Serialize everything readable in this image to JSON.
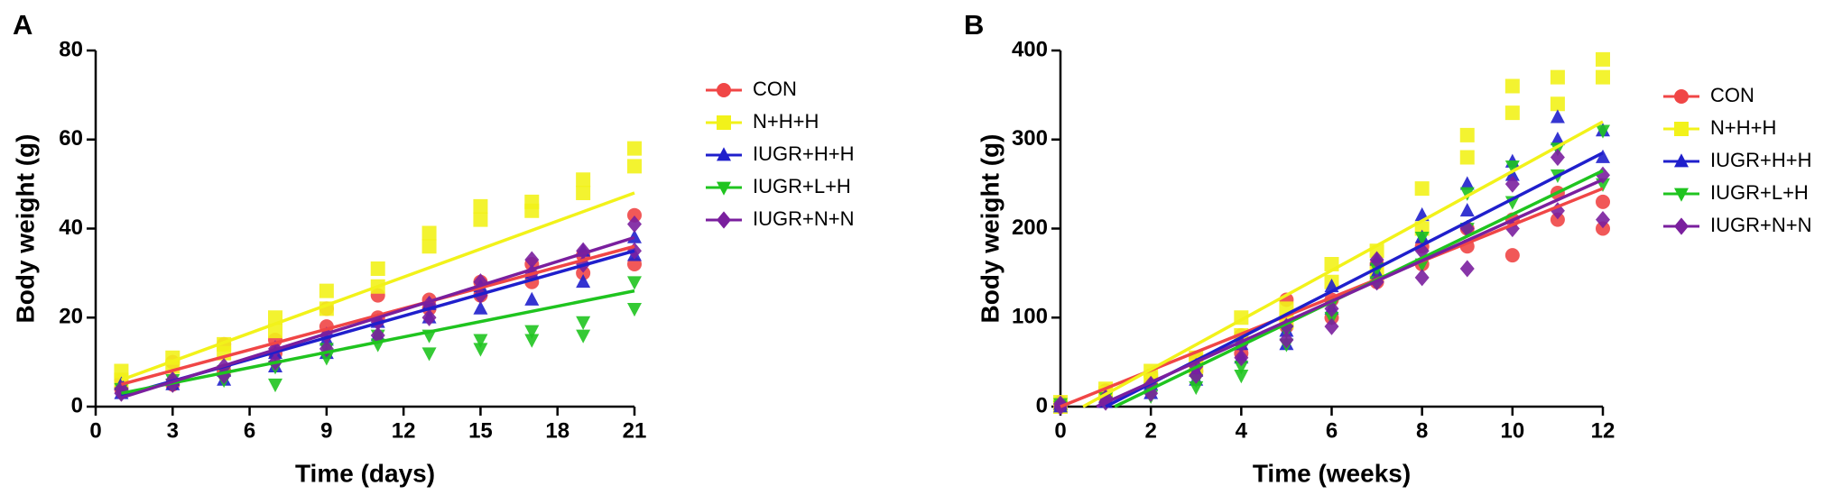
{
  "chart_data": [
    {
      "type": "scatter",
      "title": "A",
      "x_label": "Time (days)",
      "y_label": "Body weight (g)",
      "xlim": [
        0,
        21
      ],
      "xticks": [
        0,
        3,
        6,
        9,
        12,
        15,
        18,
        21
      ],
      "ylim": [
        0,
        80
      ],
      "yticks": [
        0,
        20,
        40,
        60,
        80
      ],
      "grid": false,
      "legend": "right",
      "x": [
        1,
        1,
        3,
        3,
        5,
        5,
        7,
        7,
        9,
        9,
        11,
        11,
        13,
        13,
        15,
        15,
        17,
        17,
        19,
        19,
        21,
        21
      ],
      "series": [
        {
          "name": "CON",
          "color": "#f04646",
          "marker": "circle",
          "values": [
            4,
            6,
            5,
            10,
            8,
            14,
            12,
            15,
            18,
            22,
            20,
            25,
            22,
            24,
            25,
            28,
            28,
            32,
            30,
            34,
            32,
            43
          ],
          "fit": {
            "x": [
              1,
              21
            ],
            "y": [
              5,
              36
            ]
          }
        },
        {
          "name": "N+H+H",
          "color": "#f2f21a",
          "marker": "square",
          "values": [
            6,
            8,
            9,
            11,
            12,
            14,
            17,
            20,
            22,
            26,
            27,
            31,
            36,
            39,
            42,
            45,
            44,
            46,
            48,
            51,
            54,
            58
          ],
          "fit": {
            "x": [
              1,
              21
            ],
            "y": [
              6,
              48
            ]
          }
        },
        {
          "name": "IUGR+H+H",
          "color": "#1f1fcc",
          "marker": "triangle",
          "values": [
            3,
            5,
            5,
            6,
            6,
            8,
            9,
            12,
            12,
            15,
            16,
            19,
            20,
            23,
            22,
            27,
            24,
            30,
            28,
            35,
            34,
            38
          ],
          "fit": {
            "x": [
              1,
              21
            ],
            "y": [
              2.5,
              35
            ]
          }
        },
        {
          "name": "IUGR+L+H",
          "color": "#1fc41f",
          "marker": "triangle-down",
          "values": [
            3,
            4,
            5,
            6,
            6,
            8,
            5,
            9,
            11,
            13,
            14,
            16,
            12,
            16,
            13,
            15,
            15,
            17,
            16,
            19,
            22,
            28
          ],
          "fit": {
            "x": [
              1,
              21
            ],
            "y": [
              3,
              26
            ]
          }
        },
        {
          "name": "IUGR+N+N",
          "color": "#7a1f9e",
          "marker": "diamond",
          "values": [
            3,
            4,
            5,
            6,
            7,
            9,
            10,
            13,
            13,
            16,
            16,
            19,
            20,
            23,
            25,
            28,
            30,
            33,
            32,
            35,
            35,
            41
          ],
          "fit": {
            "x": [
              1,
              21
            ],
            "y": [
              2,
              38
            ]
          }
        }
      ]
    },
    {
      "type": "scatter",
      "title": "B",
      "x_label": "Time (weeks)",
      "y_label": "Body weight (g)",
      "xlim": [
        0,
        12
      ],
      "xticks": [
        0,
        2,
        4,
        6,
        8,
        10,
        12
      ],
      "ylim": [
        0,
        400
      ],
      "yticks": [
        0,
        100,
        200,
        300,
        400
      ],
      "grid": false,
      "legend": "right",
      "x": [
        0,
        0,
        1,
        1,
        2,
        2,
        3,
        3,
        4,
        4,
        5,
        5,
        6,
        6,
        7,
        7,
        8,
        8,
        9,
        9,
        10,
        10,
        11,
        11,
        12,
        12
      ],
      "series": [
        {
          "name": "CON",
          "color": "#f04646",
          "marker": "circle",
          "values": [
            0,
            5,
            10,
            18,
            25,
            35,
            40,
            55,
            60,
            80,
            90,
            120,
            100,
            120,
            140,
            160,
            160,
            180,
            180,
            200,
            170,
            210,
            210,
            240,
            200,
            230
          ],
          "fit": {
            "x": [
              0,
              12
            ],
            "y": [
              0,
              245
            ]
          }
        },
        {
          "name": "N+H+H",
          "color": "#f2f21a",
          "marker": "square",
          "values": [
            0,
            5,
            15,
            20,
            30,
            40,
            45,
            55,
            80,
            100,
            95,
            110,
            140,
            160,
            150,
            175,
            200,
            245,
            280,
            305,
            330,
            360,
            340,
            370,
            370,
            390
          ],
          "fit": {
            "x": [
              0.5,
              12
            ],
            "y": [
              0,
              320
            ]
          }
        },
        {
          "name": "IUGR+H+H",
          "color": "#1f1fcc",
          "marker": "triangle",
          "values": [
            0,
            3,
            5,
            10,
            15,
            25,
            30,
            40,
            55,
            70,
            70,
            85,
            110,
            135,
            150,
            165,
            190,
            215,
            220,
            250,
            260,
            275,
            300,
            325,
            280,
            310
          ],
          "fit": {
            "x": [
              1,
              12
            ],
            "y": [
              0,
              285
            ]
          }
        },
        {
          "name": "IUGR+L+H",
          "color": "#1fc41f",
          "marker": "triangle-down",
          "values": [
            0,
            3,
            5,
            10,
            12,
            20,
            22,
            30,
            35,
            45,
            70,
            85,
            100,
            115,
            140,
            155,
            160,
            190,
            200,
            240,
            230,
            270,
            260,
            290,
            250,
            310
          ],
          "fit": {
            "x": [
              1.2,
              12
            ],
            "y": [
              0,
              265
            ]
          }
        },
        {
          "name": "IUGR+N+N",
          "color": "#7a1f9e",
          "marker": "diamond",
          "values": [
            0,
            3,
            5,
            10,
            15,
            25,
            35,
            45,
            55,
            70,
            75,
            90,
            90,
            110,
            140,
            165,
            145,
            175,
            155,
            200,
            200,
            250,
            220,
            280,
            210,
            260
          ],
          "fit": {
            "x": [
              0.8,
              12
            ],
            "y": [
              0,
              255
            ]
          }
        }
      ]
    }
  ]
}
